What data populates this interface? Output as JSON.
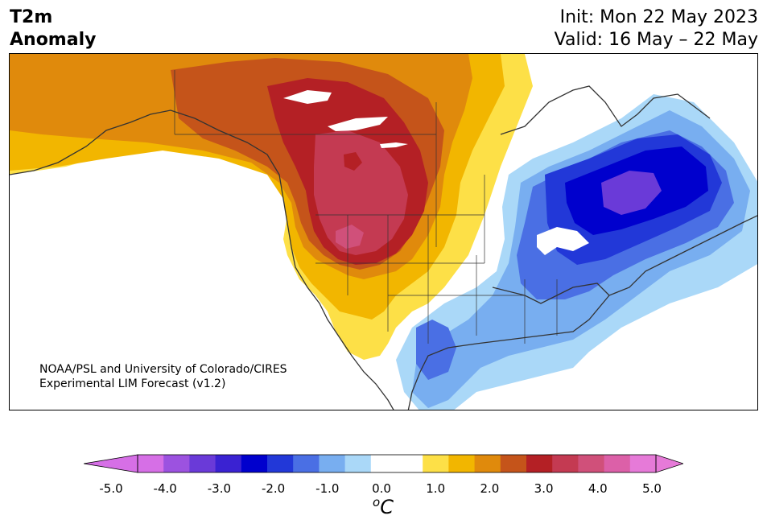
{
  "title": {
    "line1": "T2m",
    "line2": "Anomaly"
  },
  "dates": {
    "init": "Init: Mon 22 May 2023",
    "valid": "Valid: 16 May – 22 May"
  },
  "credit": {
    "line1": "NOAA/PSL and University of Colorado/CIRES",
    "line2": "Experimental LIM Forecast (v1.2)"
  },
  "colorbar": {
    "unit_super": "o",
    "unit": "C",
    "ticks": [
      "-5.0",
      "-4.0",
      "-3.0",
      "-2.0",
      "-1.0",
      "0.0",
      "1.0",
      "2.0",
      "3.0",
      "4.0",
      "5.0"
    ],
    "colors": [
      "#d66fe6",
      "#9c52e0",
      "#6a3ad8",
      "#3a22d2",
      "#0000cd",
      "#2238d8",
      "#4a6fe4",
      "#78aef0",
      "#aad8f8",
      "#ffffff",
      "#ffffff",
      "#fde047",
      "#f2b600",
      "#e08a0c",
      "#c5541a",
      "#b42025",
      "#c43a52",
      "#d0507a",
      "#dc60a8",
      "#e67ad8"
    ],
    "under_color": "#d66fe6",
    "over_color": "#e67ad8"
  }
}
